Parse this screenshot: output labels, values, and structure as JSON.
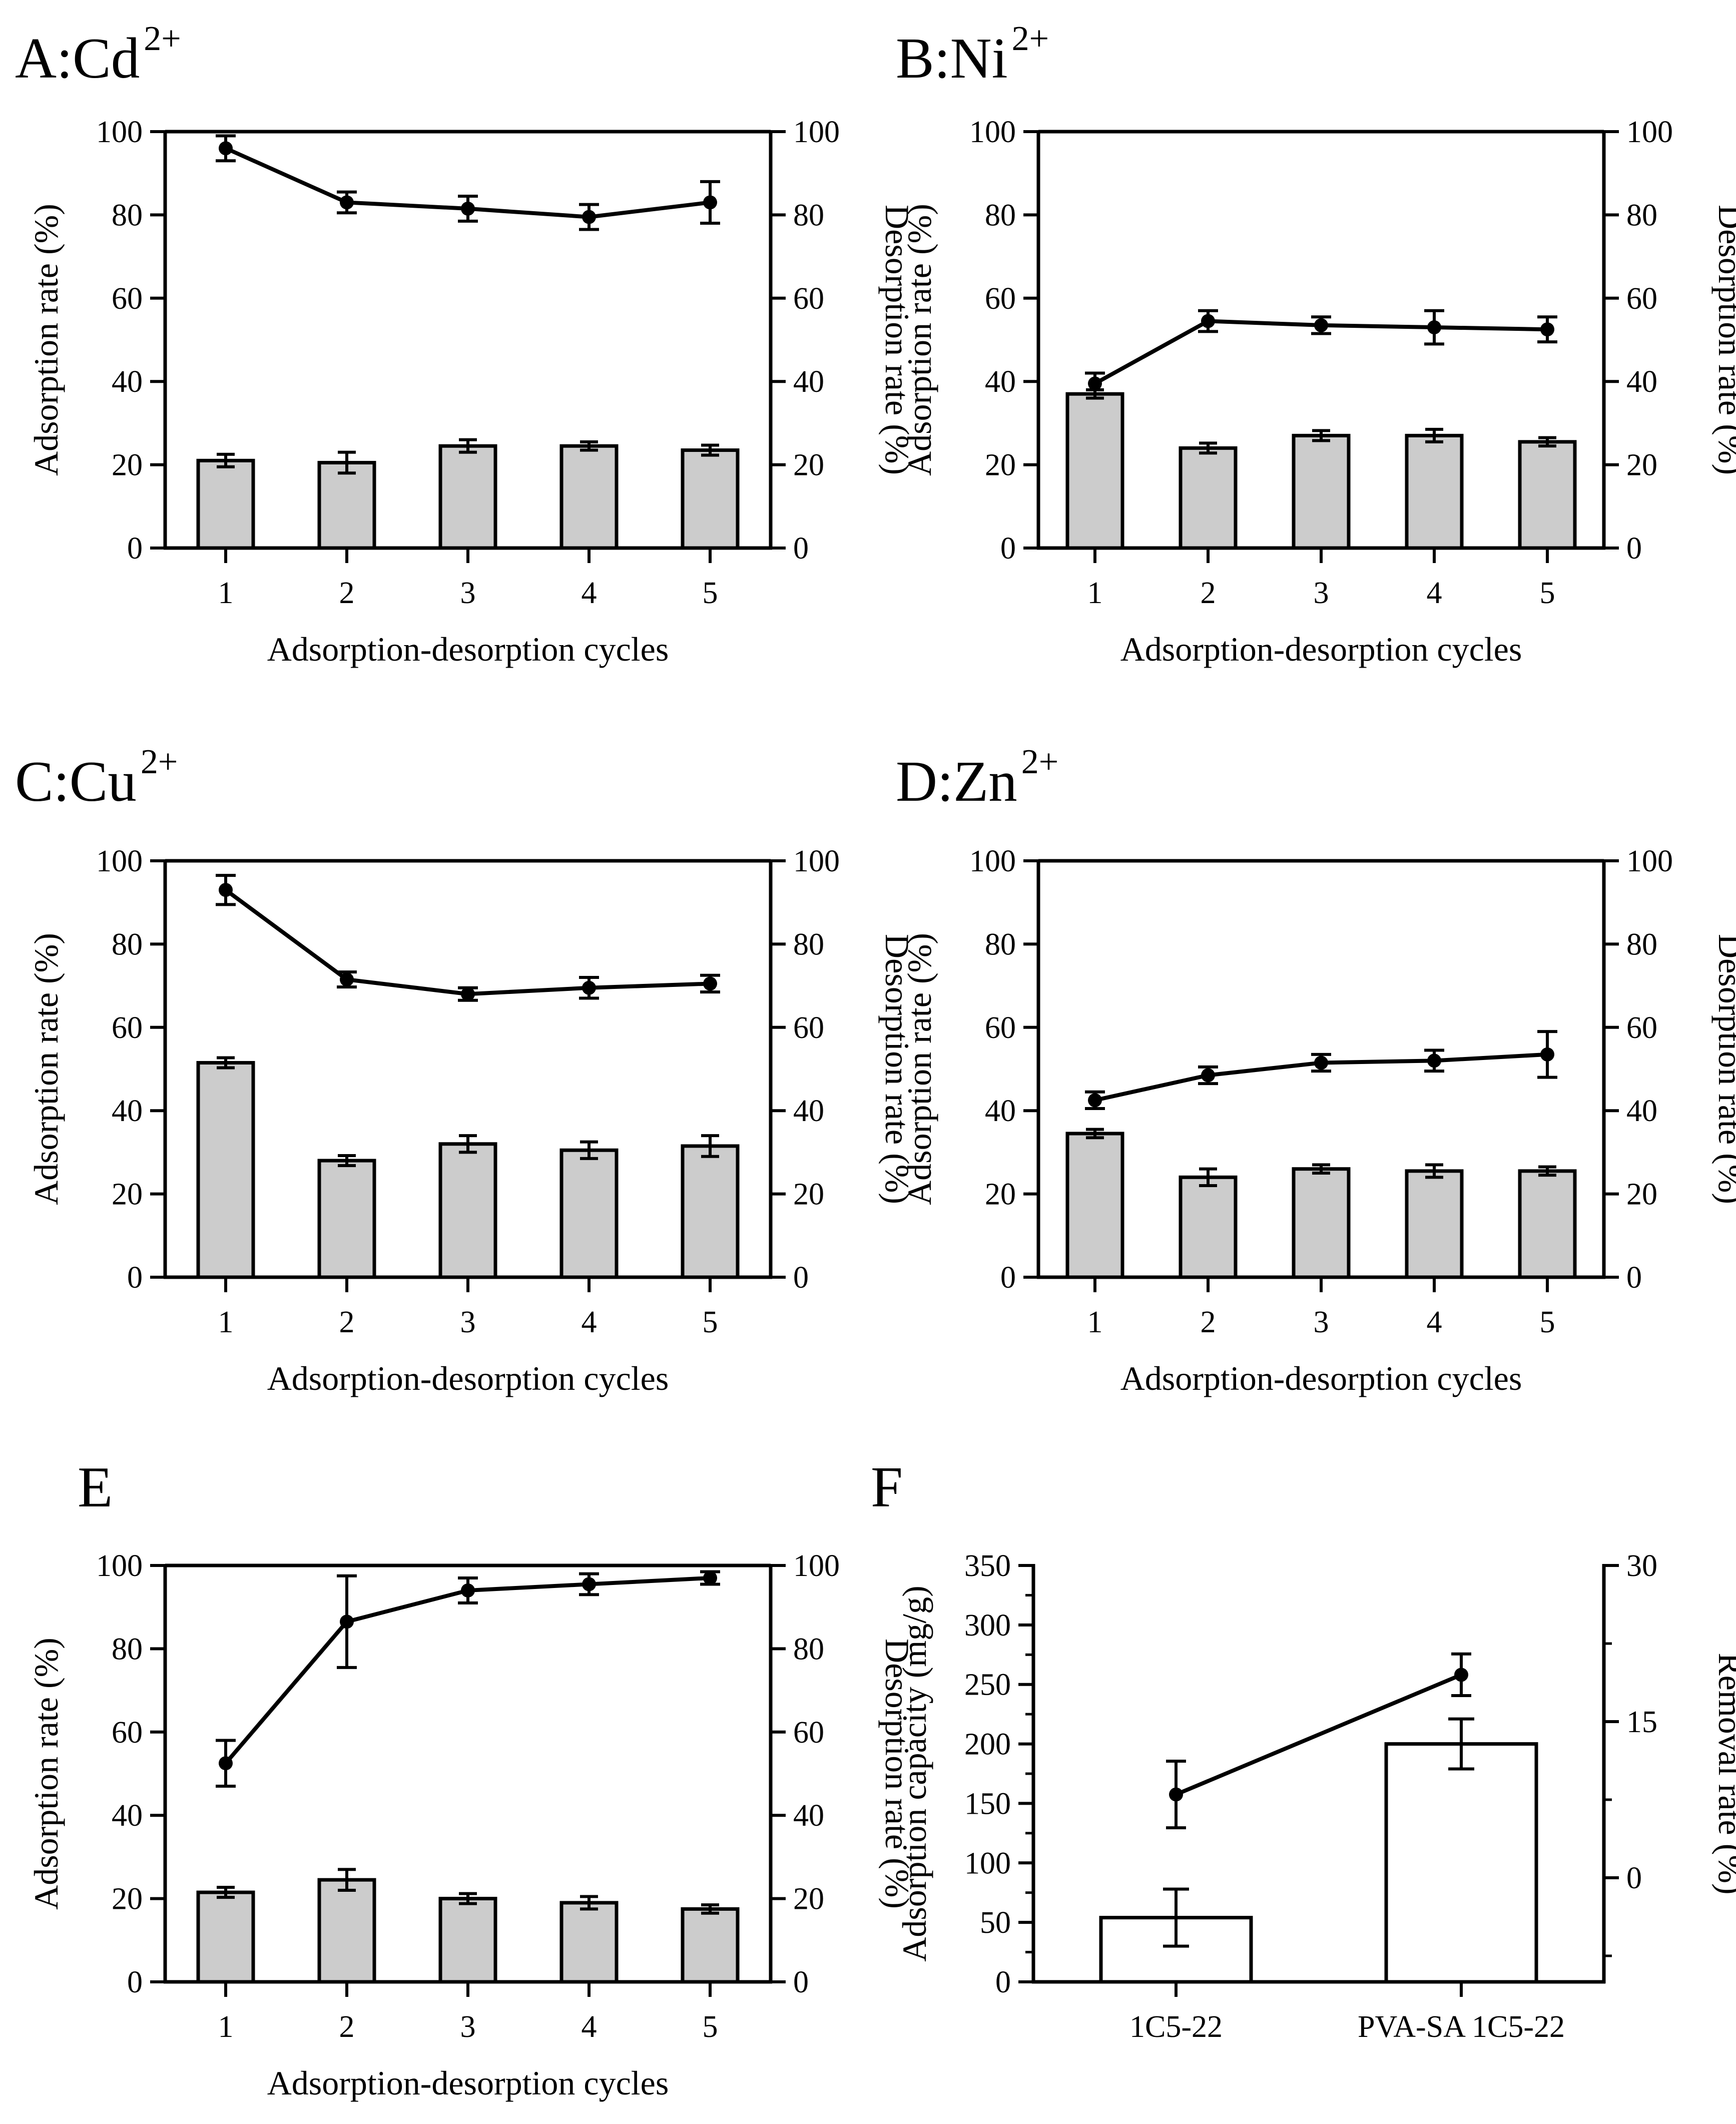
{
  "figure": {
    "panels_order": [
      "A",
      "B",
      "C",
      "D",
      "E",
      "F"
    ]
  },
  "chart_data": [
    {
      "id": "A",
      "type": "bar",
      "title_main": "A:Cd",
      "title_sup": "2+",
      "categories": [
        "1",
        "2",
        "3",
        "4",
        "5"
      ],
      "xlabel": "Adsorption-desorption cycles",
      "ylabel_left": "Adsorption rate (%)",
      "ylabel_right": "Desorption rate (%)",
      "ylim_left": [
        0,
        100
      ],
      "ylim_right": [
        0,
        100
      ],
      "yticks_left": [
        "0",
        "20",
        "40",
        "60",
        "80",
        "100"
      ],
      "yticks_right": [
        "0",
        "20",
        "40",
        "60",
        "80",
        "100"
      ],
      "series": [
        {
          "name": "Adsorption rate",
          "kind": "bar",
          "axis": "left",
          "values": [
            21,
            20.5,
            24.5,
            24.5,
            23.5
          ],
          "errors": [
            1.5,
            2.5,
            1.5,
            1,
            1.2
          ]
        },
        {
          "name": "Desorption rate",
          "kind": "line",
          "axis": "right",
          "values": [
            96,
            83,
            81.5,
            79.5,
            83
          ],
          "errors": [
            3,
            2.5,
            3,
            3,
            5
          ]
        }
      ],
      "colors": {
        "bar": "#cccccc",
        "line": "#000000"
      }
    },
    {
      "id": "B",
      "type": "bar",
      "title_main": "B:Ni",
      "title_sup": "2+",
      "categories": [
        "1",
        "2",
        "3",
        "4",
        "5"
      ],
      "xlabel": "Adsorption-desorption cycles",
      "ylabel_left": "Adsorption rate (%)",
      "ylabel_right": "Desorption rate (%)",
      "ylim_left": [
        0,
        100
      ],
      "ylim_right": [
        0,
        100
      ],
      "yticks_left": [
        "0",
        "20",
        "40",
        "60",
        "80",
        "100"
      ],
      "yticks_right": [
        "0",
        "20",
        "40",
        "60",
        "80",
        "100"
      ],
      "series": [
        {
          "name": "Adsorption rate",
          "kind": "bar",
          "axis": "left",
          "values": [
            37,
            24,
            27,
            27,
            25.5
          ],
          "errors": [
            1,
            1.2,
            1.2,
            1.5,
            1
          ]
        },
        {
          "name": "Desorption rate",
          "kind": "line",
          "axis": "right",
          "values": [
            39.5,
            54.5,
            53.5,
            53,
            52.5
          ],
          "errors": [
            2.5,
            2.5,
            2,
            4,
            3
          ]
        }
      ],
      "colors": {
        "bar": "#cccccc",
        "line": "#000000"
      }
    },
    {
      "id": "C",
      "type": "bar",
      "title_main": "C:Cu",
      "title_sup": "2+",
      "categories": [
        "1",
        "2",
        "3",
        "4",
        "5"
      ],
      "xlabel": "Adsorption-desorption cycles",
      "ylabel_left": "Adsorption rate (%)",
      "ylabel_right": "Desorption rate (%)",
      "ylim_left": [
        0,
        100
      ],
      "ylim_right": [
        0,
        100
      ],
      "yticks_left": [
        "0",
        "20",
        "40",
        "60",
        "80",
        "100"
      ],
      "yticks_right": [
        "0",
        "20",
        "40",
        "60",
        "80",
        "100"
      ],
      "series": [
        {
          "name": "Adsorption rate",
          "kind": "bar",
          "axis": "left",
          "values": [
            51.5,
            28,
            32,
            30.5,
            31.5
          ],
          "errors": [
            1.2,
            1.2,
            2,
            2,
            2.5
          ]
        },
        {
          "name": "Desorption rate",
          "kind": "line",
          "axis": "right",
          "values": [
            93,
            71.5,
            68,
            69.5,
            70.5
          ],
          "errors": [
            3.5,
            1.8,
            1.5,
            2.5,
            2
          ]
        }
      ],
      "colors": {
        "bar": "#cccccc",
        "line": "#000000"
      }
    },
    {
      "id": "D",
      "type": "bar",
      "title_main": "D:Zn",
      "title_sup": "2+",
      "categories": [
        "1",
        "2",
        "3",
        "4",
        "5"
      ],
      "xlabel": "Adsorption-desorption cycles",
      "ylabel_left": "Adsorption rate (%)",
      "ylabel_right": "Desorption rate (%)",
      "ylim_left": [
        0,
        100
      ],
      "ylim_right": [
        0,
        100
      ],
      "yticks_left": [
        "0",
        "20",
        "40",
        "60",
        "80",
        "100"
      ],
      "yticks_right": [
        "0",
        "20",
        "40",
        "60",
        "80",
        "100"
      ],
      "series": [
        {
          "name": "Adsorption rate",
          "kind": "bar",
          "axis": "left",
          "values": [
            34.5,
            24,
            26,
            25.5,
            25.5
          ],
          "errors": [
            1,
            2,
            1,
            1.5,
            1
          ]
        },
        {
          "name": "Desorption rate",
          "kind": "line",
          "axis": "right",
          "values": [
            42.5,
            48.5,
            51.5,
            52,
            53.5
          ],
          "errors": [
            2,
            2,
            2,
            2.5,
            5.5
          ]
        }
      ],
      "colors": {
        "bar": "#cccccc",
        "line": "#000000"
      }
    },
    {
      "id": "E",
      "type": "bar",
      "title_main": "E",
      "title_sup": "",
      "categories": [
        "1",
        "2",
        "3",
        "4",
        "5"
      ],
      "xlabel": "Adsorption-desorption cycles",
      "ylabel_left": "Adsorption rate (%)",
      "ylabel_right": "Desorption rate (%)",
      "ylim_left": [
        0,
        100
      ],
      "ylim_right": [
        0,
        100
      ],
      "yticks_left": [
        "0",
        "20",
        "40",
        "60",
        "80",
        "100"
      ],
      "yticks_right": [
        "0",
        "20",
        "40",
        "60",
        "80",
        "100"
      ],
      "series": [
        {
          "name": "Adsorption rate",
          "kind": "bar",
          "axis": "left",
          "values": [
            21.5,
            24.5,
            20,
            19,
            17.5
          ],
          "errors": [
            1.2,
            2.5,
            1.2,
            1.5,
            1
          ]
        },
        {
          "name": "Desorption rate",
          "kind": "line",
          "axis": "right",
          "values": [
            52.5,
            86.5,
            94,
            95.5,
            97
          ],
          "errors": [
            5.5,
            11,
            3,
            2.5,
            1.5
          ]
        }
      ],
      "colors": {
        "bar": "#cccccc",
        "line": "#000000"
      }
    },
    {
      "id": "F",
      "type": "bar",
      "title_main": "F",
      "title_sup": "",
      "categories": [
        "1C5-22",
        "PVA-SA 1C5-22"
      ],
      "xlabel": "",
      "ylabel_left": "Adsorption capacity (mg/g)",
      "ylabel_right": "Removal rate (%)",
      "ylim_left": [
        0,
        350
      ],
      "ylim_right": [
        -10,
        30
      ],
      "yticks_left": [
        "0",
        "50",
        "100",
        "150",
        "200",
        "250",
        "300",
        "350"
      ],
      "yticks_right": [
        "0",
        "15",
        "30"
      ],
      "yticks_right_values": [
        0,
        15,
        30
      ],
      "series": [
        {
          "name": "Adsorption capacity",
          "kind": "bar",
          "axis": "left",
          "values": [
            54,
            200
          ],
          "errors": [
            24,
            21
          ]
        },
        {
          "name": "Removal rate",
          "kind": "line",
          "axis": "right",
          "values": [
            8,
            19.5
          ],
          "errors": [
            3.2,
            2
          ]
        }
      ],
      "colors": {
        "bar": "#ffffff",
        "line": "#000000"
      }
    }
  ]
}
